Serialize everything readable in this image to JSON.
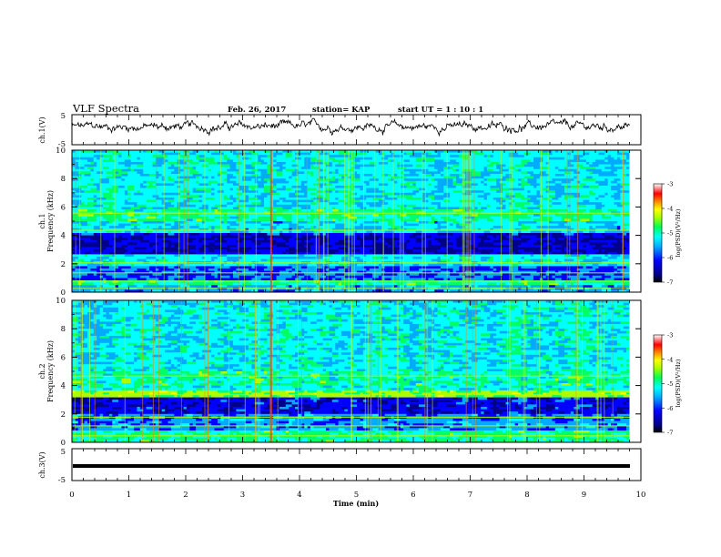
{
  "header": {
    "title": "VLF Spectra",
    "date": "Feb. 26, 2017",
    "station": "station= KAP",
    "start": "start  UT =   1 : 10 : 1"
  },
  "chart_data": [
    {
      "type": "line",
      "name": "ch1-waveform",
      "ylabel": "ch.1(V)",
      "ylim": [
        -5,
        5
      ],
      "yticks": [
        "5",
        "-5"
      ],
      "x_range_min": [
        0,
        9.8
      ],
      "series_description": "noisy waveform fluctuating between about -1 and 3 V"
    },
    {
      "type": "heatmap",
      "name": "ch1-spectrogram",
      "ylabel_channel": "ch.1",
      "ylabel": "Frequency  (kHz)",
      "ylim": [
        0,
        10
      ],
      "yticks": [
        "0",
        "2",
        "4",
        "6",
        "8",
        "10"
      ],
      "colorbar": {
        "label": "log(PSD)(V²/Hz)",
        "range": [
          -7,
          -3
        ],
        "ticks": [
          "-3",
          "-4",
          "-5",
          "-6",
          "-7"
        ]
      },
      "colors": [
        "#000000",
        "#00008b",
        "#0000ff",
        "#00aaff",
        "#00ffff",
        "#00ff66",
        "#aaff00",
        "#ffff00",
        "#ff8800",
        "#ff0000",
        "#ffffff"
      ]
    },
    {
      "type": "heatmap",
      "name": "ch2-spectrogram",
      "ylabel_channel": "ch.2",
      "ylabel": "Frequency  (kHz)",
      "ylim": [
        0,
        10
      ],
      "yticks": [
        "0",
        "2",
        "4",
        "6",
        "8",
        "10"
      ],
      "colorbar": {
        "label": "log(PSD)(V²/Hz)",
        "range": [
          -7,
          -3
        ],
        "ticks": [
          "-3",
          "-4",
          "-5",
          "-6",
          "-7"
        ]
      }
    },
    {
      "type": "line",
      "name": "ch3-waveform",
      "ylabel": "ch.3(V)",
      "ylim": [
        -5,
        5
      ],
      "yticks": [
        "5",
        "-5"
      ],
      "series_description": "flat line at about -1.5 V"
    }
  ],
  "xaxis": {
    "label": "Time  (min)",
    "range": [
      0,
      10
    ],
    "ticks": [
      "0",
      "1",
      "2",
      "3",
      "4",
      "5",
      "6",
      "7",
      "8",
      "9",
      "10"
    ]
  }
}
